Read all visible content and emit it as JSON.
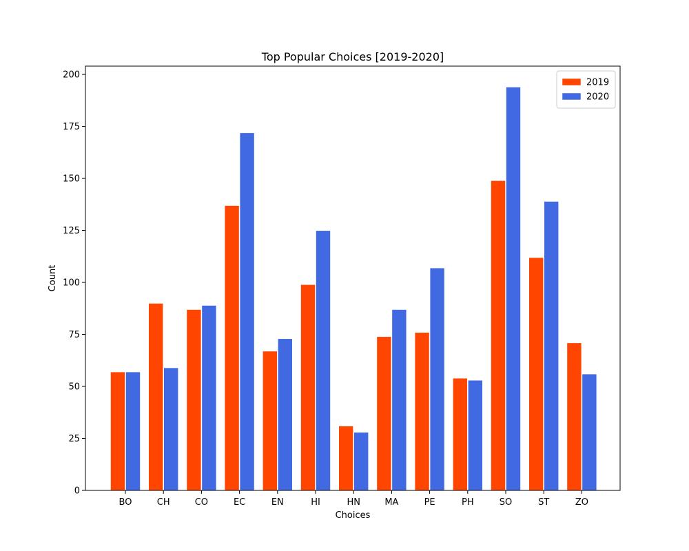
{
  "chart_data": {
    "type": "bar",
    "title": "Top Popular Choices [2019-2020]",
    "xlabel": "Choices",
    "ylabel": "Count",
    "categories": [
      "BO",
      "CH",
      "CO",
      "EC",
      "EN",
      "HI",
      "HN",
      "MA",
      "PE",
      "PH",
      "SO",
      "ST",
      "ZO"
    ],
    "series": [
      {
        "name": "2019",
        "color": "#ff4500",
        "values": [
          57,
          90,
          87,
          137,
          67,
          99,
          31,
          74,
          76,
          54,
          149,
          112,
          71
        ]
      },
      {
        "name": "2020",
        "color": "#4169e1",
        "values": [
          57,
          59,
          89,
          172,
          73,
          125,
          28,
          87,
          107,
          53,
          194,
          139,
          56
        ]
      }
    ],
    "ylim": [
      0,
      204
    ],
    "yticks": [
      0,
      25,
      50,
      75,
      100,
      125,
      150,
      175,
      200
    ],
    "grid": false,
    "legend_position": "top-right"
  }
}
